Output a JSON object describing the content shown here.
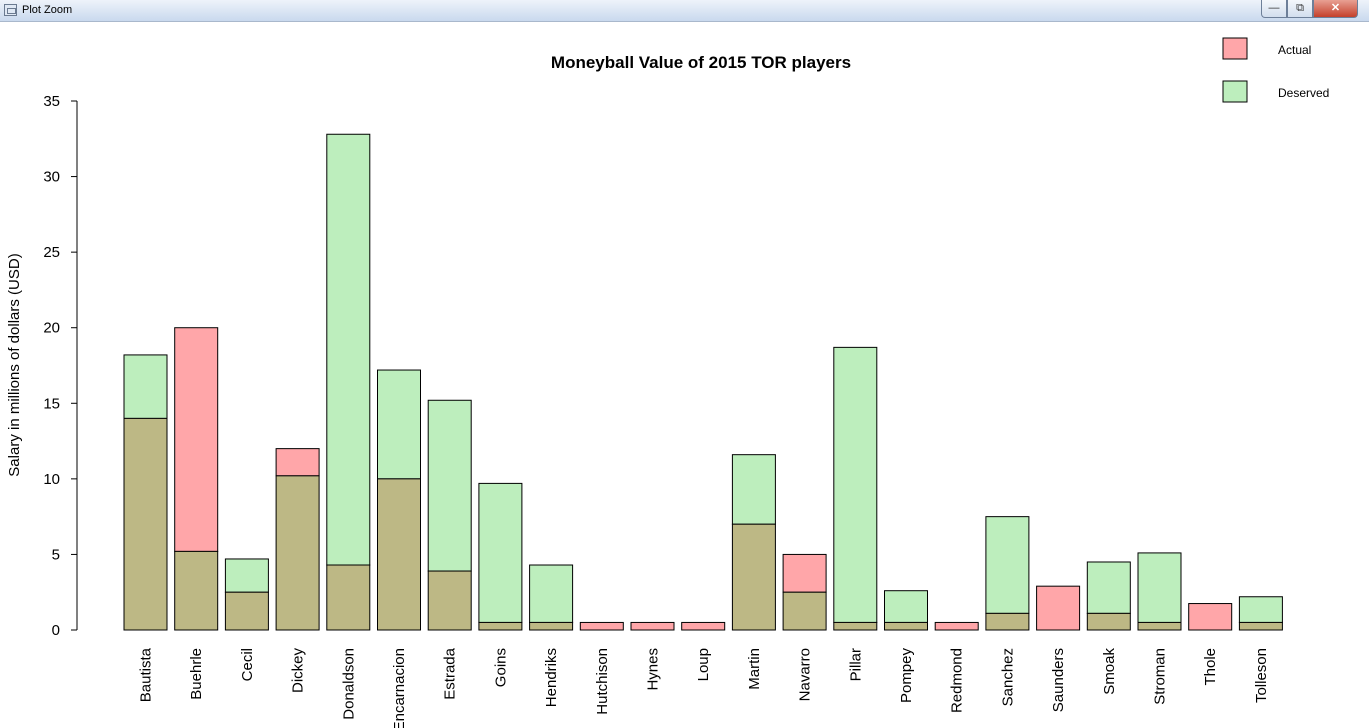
{
  "window": {
    "title": "Plot Zoom",
    "minimize_icon": "minimize-icon",
    "maximize_icon": "restore-icon",
    "close_icon": "close-icon"
  },
  "chart_data": {
    "type": "bar",
    "title": "Moneyball Value of 2015 TOR players",
    "xlabel": "",
    "ylabel": "Salary in millions of dollars (USD)",
    "ylim": [
      0,
      35
    ],
    "yticks": [
      0,
      5,
      10,
      15,
      20,
      25,
      30,
      35
    ],
    "grid": false,
    "legend_position": "top-right",
    "overlay": true,
    "categories": [
      "Bautista",
      "Buehrle",
      "Cecil",
      "Dickey",
      "Donaldson",
      "Encarnacion",
      "Estrada",
      "Goins",
      "Hendriks",
      "Hutchison",
      "Hynes",
      "Loup",
      "Martin",
      "Navarro",
      "Pillar",
      "Pompey",
      "Redmond",
      "Sanchez",
      "Saunders",
      "Smoak",
      "Stroman",
      "Thole",
      "Tolleson"
    ],
    "series": [
      {
        "name": "Actual",
        "color": "#ffa6a9",
        "values": [
          14.0,
          20.0,
          2.5,
          12.0,
          4.3,
          10.0,
          3.9,
          0.5,
          0.5,
          0.5,
          0.5,
          0.5,
          7.0,
          5.0,
          0.5,
          0.5,
          0.5,
          1.1,
          2.9,
          1.1,
          0.5,
          1.75,
          0.5
        ]
      },
      {
        "name": "Deserved",
        "color": "#bdeebd",
        "values": [
          18.2,
          5.2,
          4.7,
          10.2,
          32.8,
          17.2,
          15.2,
          9.7,
          4.3,
          0,
          0,
          0,
          11.6,
          2.5,
          18.7,
          2.6,
          0,
          7.5,
          0,
          4.5,
          5.1,
          0,
          2.2
        ]
      }
    ],
    "overlap_color": "#bdb885"
  }
}
